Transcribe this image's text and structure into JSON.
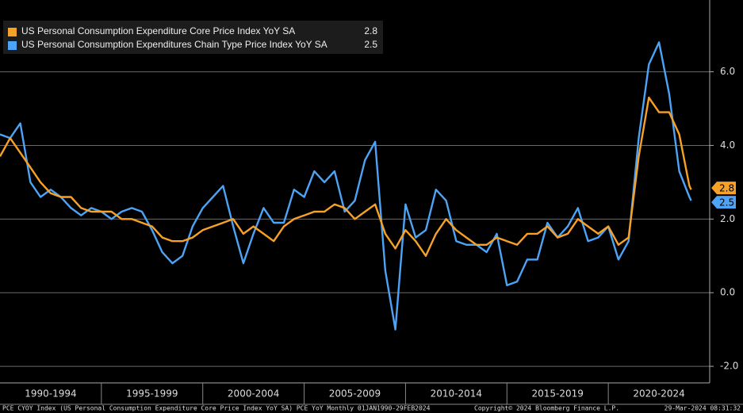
{
  "chart_data": {
    "type": "line",
    "x": [
      1990.0,
      1990.5,
      1991.0,
      1991.5,
      1992.0,
      1992.5,
      1993.0,
      1993.5,
      1994.0,
      1994.5,
      1995.0,
      1995.5,
      1996.0,
      1996.5,
      1997.0,
      1997.5,
      1998.0,
      1998.5,
      1999.0,
      1999.5,
      2000.0,
      2000.5,
      2001.0,
      2001.5,
      2002.0,
      2002.5,
      2003.0,
      2003.5,
      2004.0,
      2004.5,
      2005.0,
      2005.5,
      2006.0,
      2006.5,
      2007.0,
      2007.5,
      2008.0,
      2008.5,
      2009.0,
      2009.5,
      2010.0,
      2010.5,
      2011.0,
      2011.5,
      2012.0,
      2012.5,
      2013.0,
      2013.5,
      2014.0,
      2014.5,
      2015.0,
      2015.5,
      2016.0,
      2016.5,
      2017.0,
      2017.5,
      2018.0,
      2018.5,
      2019.0,
      2019.5,
      2020.0,
      2020.5,
      2021.0,
      2021.5,
      2022.0,
      2022.5,
      2023.0,
      2023.5,
      2024.0,
      2024.0833
    ],
    "series": [
      {
        "name": "US Personal Consumption Expenditure Core Price Index YoY SA",
        "color": "#f7a128",
        "values": [
          3.7,
          4.2,
          3.8,
          3.4,
          3.0,
          2.7,
          2.6,
          2.6,
          2.3,
          2.2,
          2.2,
          2.2,
          2.0,
          2.0,
          1.9,
          1.8,
          1.5,
          1.4,
          1.4,
          1.5,
          1.7,
          1.8,
          1.9,
          2.0,
          1.6,
          1.8,
          1.6,
          1.4,
          1.8,
          2.0,
          2.1,
          2.2,
          2.2,
          2.4,
          2.3,
          2.0,
          2.2,
          2.4,
          1.6,
          1.2,
          1.7,
          1.4,
          1.0,
          1.6,
          2.0,
          1.7,
          1.5,
          1.3,
          1.3,
          1.5,
          1.4,
          1.3,
          1.6,
          1.6,
          1.8,
          1.5,
          1.6,
          2.0,
          1.8,
          1.6,
          1.8,
          1.3,
          1.5,
          3.7,
          5.3,
          4.9,
          4.9,
          4.3,
          2.9,
          2.8
        ]
      },
      {
        "name": "US Personal Consumption Expenditures Chain Type Price Index YoY SA",
        "color": "#4da3f5",
        "values": [
          4.3,
          4.2,
          4.6,
          3.0,
          2.6,
          2.8,
          2.6,
          2.3,
          2.1,
          2.3,
          2.2,
          2.0,
          2.2,
          2.3,
          2.2,
          1.7,
          1.1,
          0.8,
          1.0,
          1.8,
          2.3,
          2.6,
          2.9,
          1.8,
          0.8,
          1.6,
          2.3,
          1.9,
          1.9,
          2.8,
          2.6,
          3.3,
          3.0,
          3.3,
          2.2,
          2.5,
          3.6,
          4.1,
          0.6,
          -1.0,
          2.4,
          1.5,
          1.7,
          2.8,
          2.5,
          1.4,
          1.3,
          1.3,
          1.1,
          1.6,
          0.2,
          0.3,
          0.9,
          0.9,
          1.9,
          1.5,
          1.8,
          2.3,
          1.4,
          1.5,
          1.8,
          0.9,
          1.4,
          4.2,
          6.2,
          6.8,
          5.4,
          3.3,
          2.6,
          2.5
        ]
      }
    ],
    "xlim": [
      1990,
      2025
    ],
    "xticks": [
      {
        "value": 1990,
        "label": "1990-1994"
      },
      {
        "value": 1995,
        "label": "1995-1999"
      },
      {
        "value": 2000,
        "label": "2000-2004"
      },
      {
        "value": 2005,
        "label": "2005-2009"
      },
      {
        "value": 2010,
        "label": "2010-2014"
      },
      {
        "value": 2015,
        "label": "2015-2019"
      },
      {
        "value": 2020,
        "label": "2020-2024"
      }
    ],
    "ylim": [
      -2.45,
      7.95
    ],
    "yticks": [
      {
        "value": -2,
        "label": "-2.0"
      },
      {
        "value": 0,
        "label": "0.0"
      },
      {
        "value": 2,
        "label": "2.0"
      },
      {
        "value": 4,
        "label": "4.0"
      },
      {
        "value": 6,
        "label": "6.0"
      }
    ],
    "grid": true,
    "legend": "top-left",
    "footer": {
      "left": "PCE CYOY Index (US Personal Consumption Expenditure Core Price Index YoY SA) PCE YoY  Monthly 01JAN1990-29FEB2024",
      "center": "Copyright© 2024 Bloomberg Finance L.P.",
      "right": "29-Mar-2024 08:31:32"
    }
  }
}
